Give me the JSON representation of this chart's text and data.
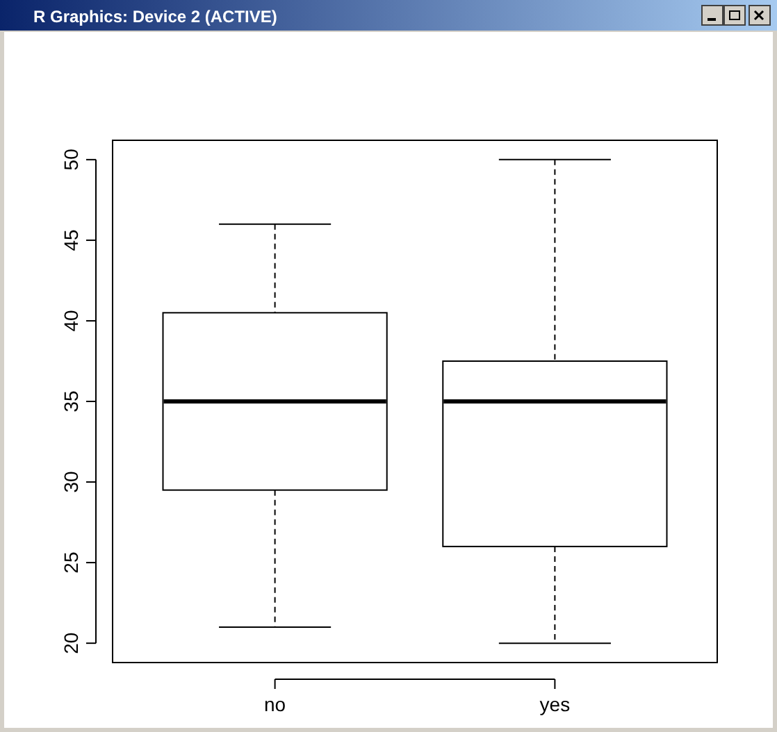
{
  "chart_data": {
    "type": "box",
    "title": "R Graphics: Device 2 (ACTIVE)",
    "categories": [
      "no",
      "yes"
    ],
    "boxes": [
      {
        "low": 21,
        "q1": 29.5,
        "median": 35,
        "q3": 40.5,
        "high": 46
      },
      {
        "low": 20,
        "q1": 26,
        "median": 35,
        "q3": 37.5,
        "high": 50
      }
    ],
    "ylim": [
      18.8,
      51.2
    ],
    "yticks": [
      20,
      25,
      30,
      35,
      40,
      45,
      50
    ]
  }
}
